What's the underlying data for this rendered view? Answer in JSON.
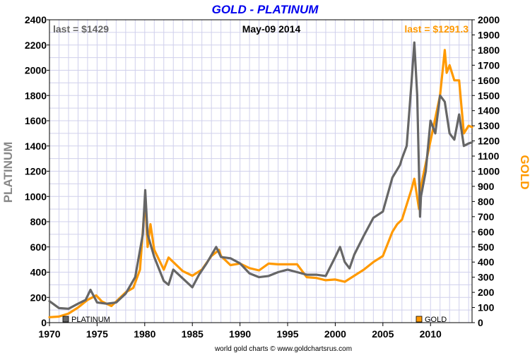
{
  "colors": {
    "platinum": "#666666",
    "gold": "#ff9900",
    "title": "#0000ee",
    "grid": "#d0d0ec"
  },
  "chart_data": {
    "type": "line",
    "title": "GOLD - PLATINUM",
    "date_label": "May-09  2014",
    "annotations": {
      "platinum_last": "last = $1429",
      "gold_last": "last = $1291.3"
    },
    "credit": "world gold charts © www.goldchartsrus.com",
    "x_range": [
      1970,
      2014.36
    ],
    "x_ticks": [
      1970,
      1975,
      1980,
      1985,
      1990,
      1995,
      2000,
      2005,
      2010
    ],
    "x_tick_labels": [
      "1970",
      "1975",
      "1980",
      "1985",
      "1990",
      "1995",
      "2000",
      "2005",
      "2010"
    ],
    "y_left": {
      "label": "PLATINUM",
      "range": [
        0,
        2400
      ],
      "ticks": [
        0,
        200,
        400,
        600,
        800,
        1000,
        1200,
        1400,
        1600,
        1800,
        2000,
        2200,
        2400
      ],
      "tick_labels": [
        "0",
        "200",
        "400",
        "600",
        "800",
        "1000",
        "1200",
        "1400",
        "1600",
        "1800",
        "2000",
        "2200",
        "2400"
      ]
    },
    "y_right": {
      "label": "GOLD",
      "range": [
        0,
        2000
      ],
      "ticks": [
        0,
        100,
        200,
        300,
        400,
        500,
        600,
        700,
        800,
        900,
        1000,
        1100,
        1200,
        1300,
        1400,
        1500,
        1600,
        1700,
        1800,
        1900,
        2000
      ],
      "tick_labels": [
        "0",
        "100",
        "200",
        "300",
        "400",
        "500",
        "600",
        "700",
        "800",
        "900",
        "1000",
        "1100",
        "1200",
        "1300",
        "1400",
        "1500",
        "1600",
        "1700",
        "1800",
        "1900",
        "2000"
      ]
    },
    "grid": true,
    "legend": [
      {
        "name": "PLATINUM",
        "position": "bottom-left"
      },
      {
        "name": "GOLD",
        "position": "bottom-right"
      }
    ],
    "series": [
      {
        "name": "PLATINUM",
        "axis": "left",
        "x": [
          1970,
          1971,
          1972,
          1973,
          1973.8,
          1974.3,
          1975,
          1976,
          1977,
          1978,
          1979,
          1979.8,
          1980.05,
          1980.3,
          1981,
          1982,
          1982.5,
          1983,
          1984,
          1985,
          1985.7,
          1986.5,
          1987.5,
          1988,
          1989,
          1990,
          1991,
          1992,
          1993,
          1994,
          1995,
          1996,
          1997,
          1998,
          1999,
          2000,
          2000.5,
          2001,
          2001.5,
          2002,
          2003,
          2004,
          2005,
          2006,
          2006.8,
          2007,
          2007.5,
          2008,
          2008.3,
          2008.6,
          2008.9,
          2009,
          2009.5,
          2010,
          2010.5,
          2011,
          2011.5,
          2012,
          2012.5,
          2013,
          2013.5,
          2014,
          2014.36
        ],
        "y": [
          170,
          115,
          110,
          150,
          180,
          260,
          160,
          150,
          160,
          230,
          360,
          700,
          1050,
          700,
          520,
          330,
          300,
          420,
          350,
          280,
          380,
          470,
          600,
          520,
          510,
          470,
          390,
          360,
          370,
          400,
          420,
          400,
          380,
          380,
          370,
          520,
          600,
          480,
          430,
          540,
          690,
          830,
          880,
          1150,
          1250,
          1300,
          1400,
          1900,
          2220,
          1800,
          840,
          1000,
          1200,
          1600,
          1500,
          1800,
          1750,
          1500,
          1450,
          1650,
          1400,
          1420,
          1429
        ]
      },
      {
        "name": "GOLD",
        "axis": "right",
        "x": [
          1970,
          1971,
          1972,
          1973,
          1974,
          1974.9,
          1975.5,
          1976.5,
          1977,
          1978,
          1978.8,
          1979.5,
          1980.05,
          1980.3,
          1980.6,
          1981,
          1982,
          1982.5,
          1983,
          1984,
          1985,
          1986,
          1987,
          1987.8,
          1988,
          1989,
          1990,
          1991,
          1992,
          1993,
          1994,
          1995,
          1996,
          1997,
          1998,
          1999,
          2000,
          2001,
          2002,
          2003,
          2004,
          2005,
          2006,
          2006.5,
          2007,
          2008,
          2008.3,
          2008.8,
          2009,
          2010,
          2011,
          2011.5,
          2011.7,
          2012,
          2012.5,
          2013,
          2013.5,
          2014,
          2014.36
        ],
        "y": [
          36,
          40,
          60,
          100,
          150,
          180,
          140,
          110,
          140,
          200,
          230,
          350,
          820,
          500,
          650,
          480,
          350,
          430,
          400,
          340,
          310,
          350,
          440,
          480,
          440,
          380,
          390,
          360,
          345,
          390,
          385,
          385,
          385,
          300,
          295,
          280,
          285,
          270,
          310,
          350,
          400,
          440,
          600,
          650,
          680,
          880,
          950,
          750,
          900,
          1200,
          1500,
          1800,
          1650,
          1700,
          1600,
          1600,
          1250,
          1300,
          1291.3
        ]
      }
    ]
  }
}
